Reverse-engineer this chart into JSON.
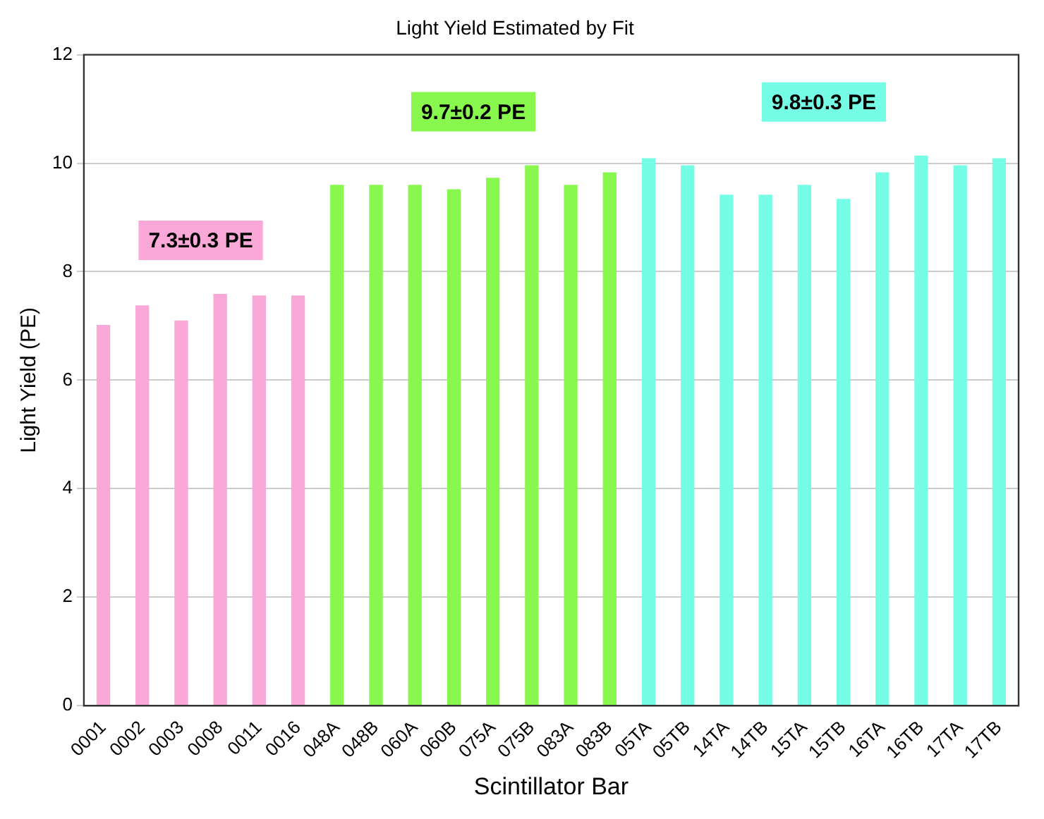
{
  "chart_data": {
    "type": "bar",
    "title": "Light Yield Estimated by Fit",
    "xlabel": "Scintillator Bar",
    "ylabel": "Light Yield (PE)",
    "categories": [
      "0001",
      "0002",
      "0003",
      "0008",
      "0011",
      "0016",
      "048A",
      "048B",
      "060A",
      "060B",
      "075A",
      "075B",
      "083A",
      "083B",
      "05TA",
      "05TB",
      "14TA",
      "14TB",
      "15TA",
      "15TB",
      "16TA",
      "16TB",
      "17TA",
      "17TB"
    ],
    "values": [
      7.02,
      7.38,
      7.1,
      7.59,
      7.56,
      7.56,
      9.6,
      9.6,
      9.6,
      9.52,
      9.73,
      9.96,
      9.6,
      9.83,
      10.09,
      9.96,
      9.42,
      9.42,
      9.6,
      9.34,
      9.83,
      10.14,
      9.96,
      10.09
    ],
    "colors": [
      "#f9a8d8",
      "#f9a8d8",
      "#f9a8d8",
      "#f9a8d8",
      "#f9a8d8",
      "#f9a8d8",
      "#88f74e",
      "#88f74e",
      "#88f74e",
      "#88f74e",
      "#88f74e",
      "#88f74e",
      "#88f74e",
      "#88f74e",
      "#76fde6",
      "#76fde6",
      "#76fde6",
      "#76fde6",
      "#76fde6",
      "#76fde6",
      "#76fde6",
      "#76fde6",
      "#76fde6",
      "#76fde6"
    ],
    "annotations": [
      "7.3±0.3 PE",
      "9.7±0.2 PE",
      "9.8±0.3 PE"
    ],
    "ylim": [
      0,
      12
    ],
    "yticks": [
      0,
      2,
      4,
      6,
      8,
      10,
      12
    ],
    "grid": "y",
    "legend": false
  }
}
